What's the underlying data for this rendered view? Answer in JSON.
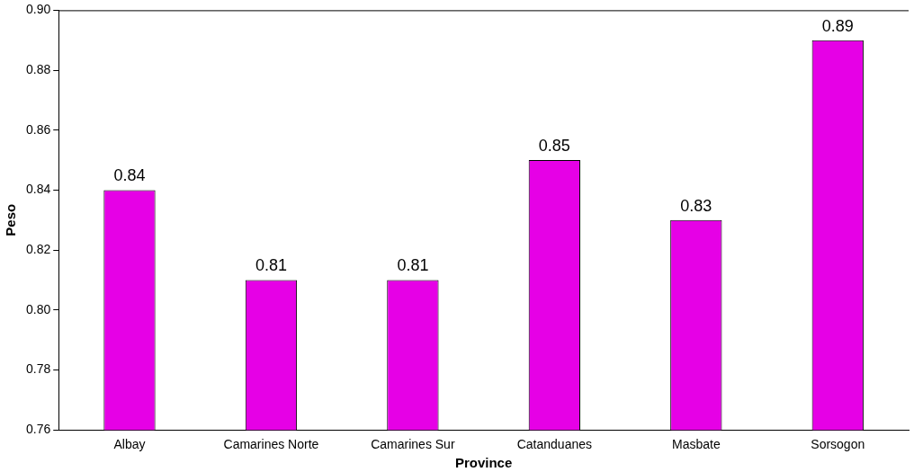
{
  "chart_data": {
    "type": "bar",
    "xlabel": "Province",
    "ylabel": "Peso",
    "categories": [
      "Albay",
      "Camarines Norte",
      "Camarines Sur",
      "Catanduanes",
      "Masbate",
      "Sorsogon"
    ],
    "values": [
      0.84,
      0.81,
      0.81,
      0.85,
      0.83,
      0.89
    ],
    "color": "#e600e6",
    "ylim": [
      0.76,
      0.9
    ],
    "yticks": [
      {
        "value": 0.76,
        "label": "0.76"
      },
      {
        "value": 0.78,
        "label": "0.78"
      },
      {
        "value": 0.8,
        "label": "0.80"
      },
      {
        "value": 0.82,
        "label": "0.82"
      },
      {
        "value": 0.84,
        "label": "0.84"
      },
      {
        "value": 0.86,
        "label": "0.86"
      },
      {
        "value": 0.88,
        "label": "0.88"
      },
      {
        "value": 0.9,
        "label": "0.90"
      }
    ],
    "grid": false,
    "legend": false,
    "data_labels": true
  }
}
